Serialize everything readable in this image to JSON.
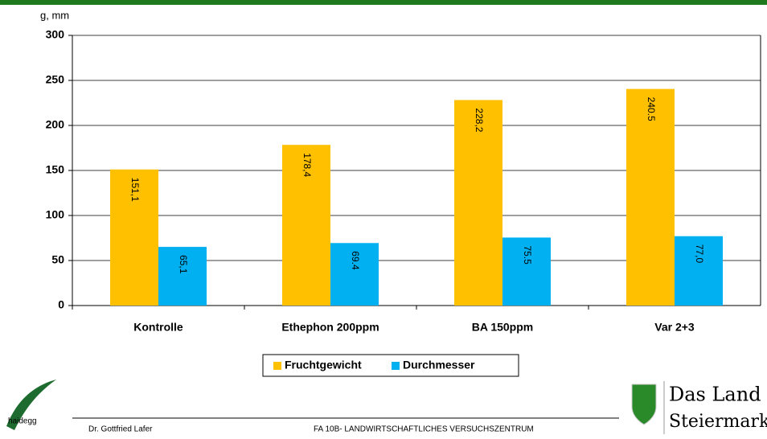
{
  "chart_data": {
    "type": "bar",
    "y_axis_label": "g, mm",
    "categories": [
      "Kontrolle",
      "Ethephon 200ppm",
      "BA 150ppm",
      "Var 2+3"
    ],
    "series": [
      {
        "name": "Fruchtgewicht",
        "color": "#ffc000",
        "values": [
          151.1,
          178.4,
          228.2,
          240.5
        ],
        "value_labels": [
          "151,1",
          "178,4",
          "228,2",
          "240.5"
        ]
      },
      {
        "name": "Durchmesser",
        "color": "#00b0f0",
        "values": [
          65.1,
          69.4,
          75.5,
          77.0
        ],
        "value_labels": [
          "65,1",
          "69.4",
          "75.5",
          "77,0"
        ]
      }
    ],
    "ylim": [
      0,
      300
    ],
    "yticks": [
      0,
      50,
      100,
      150,
      200,
      250,
      300
    ],
    "grid": true
  },
  "footer": {
    "logo_left": "haidegg",
    "author": "Dr. Gottfried Lafer",
    "institute": "FA 10B- LANDWIRTSCHAFTLICHES VERSUCHSZENTRUM",
    "logo_right_line1": "Das Land",
    "logo_right_line2": "Steiermark"
  }
}
